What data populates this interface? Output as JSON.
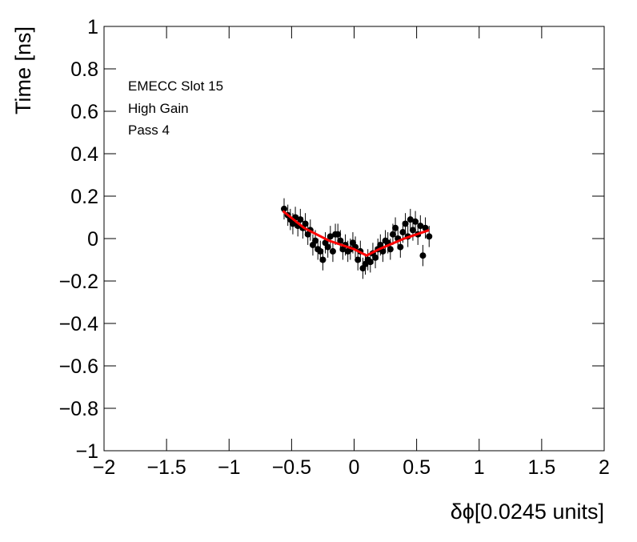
{
  "chart_data": {
    "type": "scatter",
    "xlabel": "δϕ[0.0245 units]",
    "ylabel": "Time [ns]",
    "annotations": [
      "EMECC Slot 15",
      "High Gain",
      "Pass 4"
    ],
    "xlim": [
      -2,
      2
    ],
    "ylim": [
      -1,
      1
    ],
    "xticks": [
      {
        "value": -2,
        "label": "−2"
      },
      {
        "value": -1.5,
        "label": "−1.5"
      },
      {
        "value": -1,
        "label": "−1"
      },
      {
        "value": -0.5,
        "label": "−0.5"
      },
      0,
      0.5,
      1,
      1.5,
      2
    ],
    "yticks": [
      {
        "value": -1,
        "label": "−1"
      },
      {
        "value": -0.8,
        "label": "−0.8"
      },
      {
        "value": -0.6,
        "label": "−0.6"
      },
      {
        "value": -0.4,
        "label": "−0.4"
      },
      {
        "value": -0.2,
        "label": "−0.2"
      },
      0,
      0.2,
      0.4,
      0.6,
      0.8,
      1
    ],
    "color": "#000000",
    "yerr": 0.05,
    "x": [
      -0.56,
      -0.53,
      -0.51,
      -0.49,
      -0.47,
      -0.45,
      -0.43,
      -0.41,
      -0.39,
      -0.37,
      -0.35,
      -0.33,
      -0.31,
      -0.29,
      -0.27,
      -0.25,
      -0.23,
      -0.21,
      -0.19,
      -0.17,
      -0.15,
      -0.13,
      -0.11,
      -0.09,
      -0.07,
      -0.05,
      -0.03,
      -0.01,
      0.01,
      0.03,
      0.05,
      0.07,
      0.09,
      0.11,
      0.13,
      0.15,
      0.17,
      0.19,
      0.21,
      0.23,
      0.25,
      0.27,
      0.29,
      0.31,
      0.33,
      0.35,
      0.37,
      0.39,
      0.41,
      0.43,
      0.45,
      0.47,
      0.49,
      0.51,
      0.53,
      0.55,
      0.57,
      0.6
    ],
    "values": [
      0.14,
      0.11,
      0.09,
      0.07,
      0.1,
      0.06,
      0.09,
      0.05,
      0.07,
      0.02,
      0.04,
      -0.03,
      -0.01,
      -0.05,
      -0.06,
      -0.1,
      -0.02,
      -0.04,
      0.01,
      -0.06,
      0.02,
      0.02,
      -0.01,
      -0.05,
      -0.03,
      -0.06,
      -0.05,
      -0.02,
      -0.04,
      -0.1,
      -0.06,
      -0.14,
      -0.12,
      -0.1,
      -0.11,
      -0.07,
      -0.09,
      -0.05,
      -0.03,
      -0.06,
      -0.01,
      -0.02,
      -0.05,
      0.02,
      0.05,
      0.0,
      -0.04,
      0.03,
      0.07,
      0.01,
      0.09,
      0.04,
      0.08,
      0.02,
      0.06,
      -0.08,
      0.05,
      0.01
    ],
    "fit": {
      "color": "#ff0000",
      "x": [
        -0.57,
        -0.4,
        -0.2,
        0,
        0.1,
        0.2,
        0.4,
        0.6
      ],
      "values": [
        0.13,
        0.05,
        -0.01,
        -0.05,
        -0.08,
        -0.05,
        0.0,
        0.04
      ]
    }
  }
}
